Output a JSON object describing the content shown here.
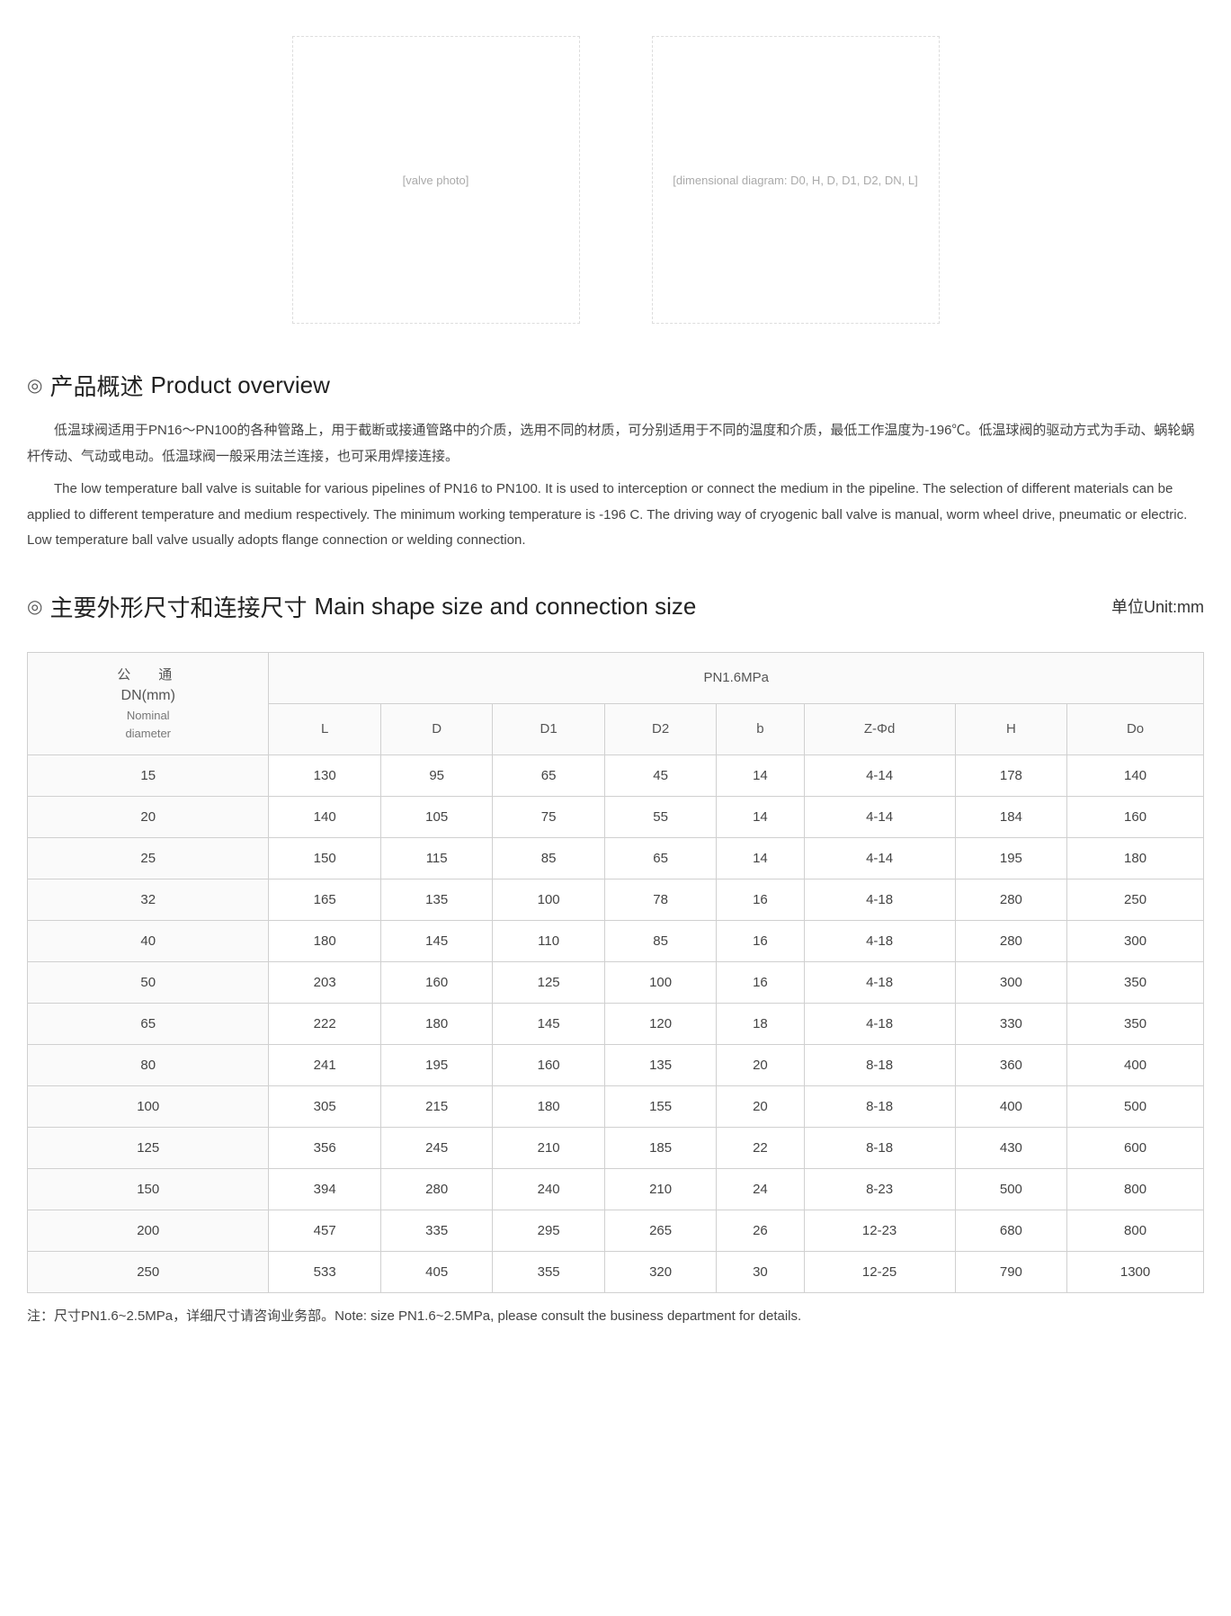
{
  "images": {
    "photo_label": "[valve photo]",
    "diagram_label": "[dimensional diagram: D0, H, D, D1, D2, DN, L]"
  },
  "overview": {
    "bullet": "◎",
    "title_cn": "产品概述",
    "title_en": "Product overview",
    "para_cn": "低温球阀适用于PN16～PN100的各种管路上，用于截断或接通管路中的介质，选用不同的材质，可分别适用于不同的温度和介质，最低工作温度为-196℃。低温球阀的驱动方式为手动、蜗轮蜗杆传动、气动或电动。低温球阀一般采用法兰连接，也可采用焊接连接。",
    "para_en": "The low temperature ball valve is suitable for various pipelines of PN16 to PN100. It is used to interception or connect the medium in the pipeline. The selection of different materials can be applied to different temperature and medium respectively. The minimum working temperature is -196 C. The driving way of cryogenic ball valve is manual, worm wheel drive, pneumatic or electric. Low temperature ball valve usually adopts flange connection or welding connection."
  },
  "sizes": {
    "bullet": "◎",
    "title_cn": "主要外形尺寸和连接尺寸",
    "title_en": "Main shape size and connection size",
    "unit_label": "单位Unit:mm",
    "dn_header_cn": "公　通",
    "dn_header_mm": "DN(mm)",
    "dn_header_en1": "Nominal",
    "dn_header_en2": "diameter",
    "pressure_header": "PN1.6MPa",
    "columns": [
      "L",
      "D",
      "D1",
      "D2",
      "b",
      "Z-Φd",
      "H",
      "Do"
    ],
    "rows": [
      [
        "15",
        "130",
        "95",
        "65",
        "45",
        "14",
        "4-14",
        "178",
        "140"
      ],
      [
        "20",
        "140",
        "105",
        "75",
        "55",
        "14",
        "4-14",
        "184",
        "160"
      ],
      [
        "25",
        "150",
        "115",
        "85",
        "65",
        "14",
        "4-14",
        "195",
        "180"
      ],
      [
        "32",
        "165",
        "135",
        "100",
        "78",
        "16",
        "4-18",
        "280",
        "250"
      ],
      [
        "40",
        "180",
        "145",
        "110",
        "85",
        "16",
        "4-18",
        "280",
        "300"
      ],
      [
        "50",
        "203",
        "160",
        "125",
        "100",
        "16",
        "4-18",
        "300",
        "350"
      ],
      [
        "65",
        "222",
        "180",
        "145",
        "120",
        "18",
        "4-18",
        "330",
        "350"
      ],
      [
        "80",
        "241",
        "195",
        "160",
        "135",
        "20",
        "8-18",
        "360",
        "400"
      ],
      [
        "100",
        "305",
        "215",
        "180",
        "155",
        "20",
        "8-18",
        "400",
        "500"
      ],
      [
        "125",
        "356",
        "245",
        "210",
        "185",
        "22",
        "8-18",
        "430",
        "600"
      ],
      [
        "150",
        "394",
        "280",
        "240",
        "210",
        "24",
        "8-23",
        "500",
        "800"
      ],
      [
        "200",
        "457",
        "335",
        "295",
        "265",
        "26",
        "12-23",
        "680",
        "800"
      ],
      [
        "250",
        "533",
        "405",
        "355",
        "320",
        "30",
        "12-25",
        "790",
        "1300"
      ]
    ],
    "footnote": "注：尺寸PN1.6~2.5MPa，详细尺寸请咨询业务部。Note: size PN1.6~2.5MPa, please consult the business department for details."
  }
}
